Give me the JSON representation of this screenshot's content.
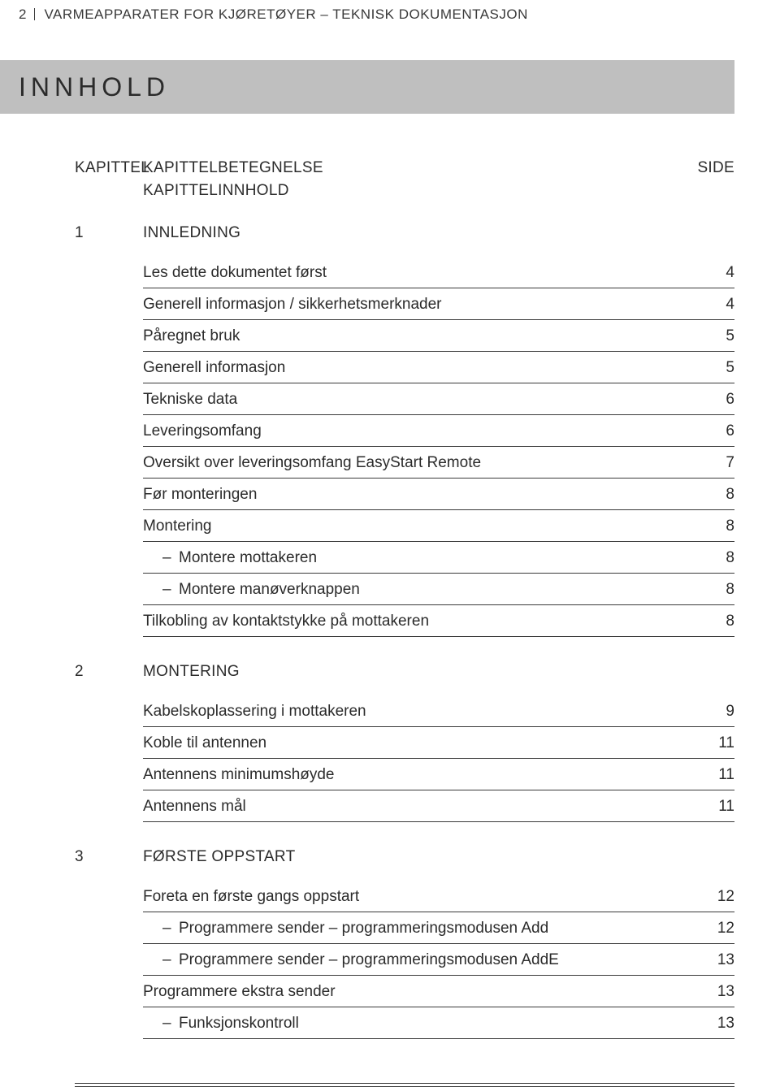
{
  "running_head": {
    "page_no": "2",
    "text": "VARMEAPPARATER FOR KJØRETØYER – TEKNISK DOKUMENTASJON"
  },
  "title": "INNHOLD",
  "header": {
    "col_chapter": "KAPITTEL",
    "col_name": "KAPITTELBETEGNELSE",
    "col_content": "KAPITTELINNHOLD",
    "col_page": "SIDE"
  },
  "chapters": [
    {
      "num": "1",
      "title": "INNLEDNING",
      "entries": [
        {
          "label": "Les dette dokumentet først",
          "page": "4",
          "indent": 0
        },
        {
          "label": "Generell informasjon / sikkerhetsmerknader",
          "page": "4",
          "indent": 0
        },
        {
          "label": "Påregnet bruk",
          "page": "5",
          "indent": 0
        },
        {
          "label": "Generell informasjon",
          "page": "5",
          "indent": 0
        },
        {
          "label": "Tekniske data",
          "page": "6",
          "indent": 0
        },
        {
          "label": "Leveringsomfang",
          "page": "6",
          "indent": 0
        },
        {
          "label": "Oversikt over leveringsomfang EasyStart Remote",
          "page": "7",
          "indent": 0
        },
        {
          "label": "Før monteringen",
          "page": "8",
          "indent": 0
        },
        {
          "label": "Montering",
          "page": "8",
          "indent": 0
        },
        {
          "label": "Montere mottakeren",
          "page": "8",
          "indent": 1
        },
        {
          "label": "Montere manøverknappen",
          "page": "8",
          "indent": 1
        },
        {
          "label": "Tilkobling av kontaktstykke på mottakeren",
          "page": "8",
          "indent": 0
        }
      ]
    },
    {
      "num": "2",
      "title": "MONTERING",
      "entries": [
        {
          "label": "Kabelskoplassering i mottakeren",
          "page": "9",
          "indent": 0
        },
        {
          "label": "Koble til antennen",
          "page": "11",
          "indent": 0
        },
        {
          "label": "Antennens minimumshøyde",
          "page": "11",
          "indent": 0
        },
        {
          "label": "Antennens mål",
          "page": "11",
          "indent": 0
        }
      ]
    },
    {
      "num": "3",
      "title": "FØRSTE OPPSTART",
      "entries": [
        {
          "label": "Foreta en første gangs oppstart",
          "page": "12",
          "indent": 0
        },
        {
          "label": "Programmere sender – programmeringsmodusen Add",
          "page": "12",
          "indent": 1
        },
        {
          "label": "Programmere sender – programmeringsmodusen AddE",
          "page": "13",
          "indent": 1
        },
        {
          "label": "Programmere ekstra sender",
          "page": "13",
          "indent": 0
        },
        {
          "label": "Funksjonskontroll",
          "page": "13",
          "indent": 1
        }
      ]
    }
  ]
}
